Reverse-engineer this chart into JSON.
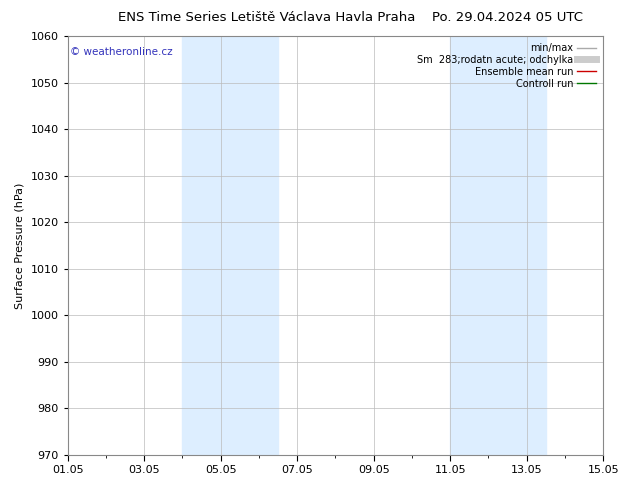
{
  "title_left": "ENS Time Series Letiště Václava Havla Praha",
  "title_right": "Po. 29.04.2024 05 UTC",
  "ylabel": "Surface Pressure (hPa)",
  "ylim": [
    970,
    1060
  ],
  "yticks": [
    970,
    980,
    990,
    1000,
    1010,
    1020,
    1030,
    1040,
    1050,
    1060
  ],
  "xtick_labels": [
    "01.05",
    "03.05",
    "05.05",
    "07.05",
    "09.05",
    "11.05",
    "13.05",
    "15.05"
  ],
  "xtick_positions": [
    0,
    2,
    4,
    6,
    8,
    10,
    12,
    14
  ],
  "shade_bands": [
    {
      "x_start": 3.0,
      "x_end": 5.5
    },
    {
      "x_start": 10.0,
      "x_end": 12.5
    }
  ],
  "shade_color": "#ddeeff",
  "watermark_text": "© weatheronline.cz",
  "watermark_color": "#3333bb",
  "legend_entries": [
    {
      "label": "min/max",
      "color": "#aaaaaa",
      "lw": 1.0
    },
    {
      "label": "Sm  283;rodatn acute; odchylka",
      "color": "#cccccc",
      "lw": 5
    },
    {
      "label": "Ensemble mean run",
      "color": "#cc0000",
      "lw": 1.0
    },
    {
      "label": "Controll run",
      "color": "#007700",
      "lw": 1.0
    }
  ],
  "background_color": "#ffffff",
  "grid_color": "#bbbbbb",
  "title_fontsize": 9.5,
  "ylabel_fontsize": 8,
  "tick_fontsize": 8,
  "legend_fontsize": 7,
  "watermark_fontsize": 7.5
}
